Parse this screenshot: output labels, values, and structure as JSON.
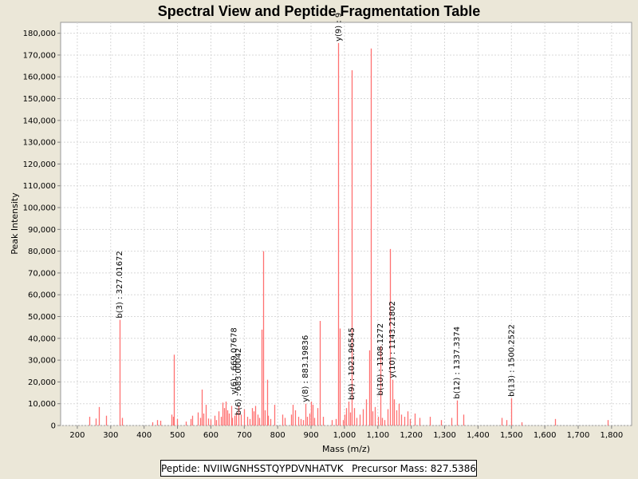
{
  "chart_data": {
    "type": "bar",
    "title": "Spectral View and Peptide Fragmentation Table",
    "xlabel": "Mass (m/z)",
    "ylabel": "Peak Intensity",
    "xlim": [
      150,
      1860
    ],
    "ylim": [
      0,
      185000
    ],
    "grid": true,
    "bar_color": "#ff7070",
    "x_ticks": [
      200,
      300,
      400,
      500,
      600,
      700,
      800,
      900,
      1000,
      1100,
      1200,
      1300,
      1400,
      1500,
      1600,
      1700,
      1800
    ],
    "x_tick_labels": [
      "200",
      "300",
      "400",
      "500",
      "600",
      "700",
      "800",
      "900",
      "1,000",
      "1,100",
      "1,200",
      "1,300",
      "1,400",
      "1,500",
      "1,600",
      "1,700",
      "1,800"
    ],
    "y_ticks": [
      0,
      10000,
      20000,
      30000,
      40000,
      50000,
      60000,
      70000,
      80000,
      90000,
      100000,
      110000,
      120000,
      130000,
      140000,
      150000,
      160000,
      170000,
      180000
    ],
    "y_tick_labels": [
      "0",
      "10,000",
      "20,000",
      "30,000",
      "40,000",
      "50,000",
      "60,000",
      "70,000",
      "80,000",
      "90,000",
      "100,000",
      "110,000",
      "120,000",
      "130,000",
      "140,000",
      "150,000",
      "160,000",
      "170,000",
      "180,000"
    ],
    "peaks": [
      [
        236,
        4000
      ],
      [
        255,
        3200
      ],
      [
        265,
        8500
      ],
      [
        285,
        4500
      ],
      [
        327,
        48500
      ],
      [
        333,
        3500
      ],
      [
        425,
        1500
      ],
      [
        440,
        2500
      ],
      [
        448,
        2200
      ],
      [
        483,
        5000
      ],
      [
        487,
        4000
      ],
      [
        490,
        32500
      ],
      [
        498,
        3000
      ],
      [
        525,
        1800
      ],
      [
        540,
        3000
      ],
      [
        545,
        4500
      ],
      [
        560,
        6000
      ],
      [
        568,
        3500
      ],
      [
        572,
        16500
      ],
      [
        578,
        5500
      ],
      [
        585,
        9500
      ],
      [
        592,
        3200
      ],
      [
        598,
        2800
      ],
      [
        610,
        4500
      ],
      [
        615,
        2500
      ],
      [
        622,
        6500
      ],
      [
        630,
        4000
      ],
      [
        636,
        10500
      ],
      [
        640,
        8000
      ],
      [
        645,
        11000
      ],
      [
        650,
        7000
      ],
      [
        655,
        5500
      ],
      [
        660,
        9000
      ],
      [
        664,
        3500
      ],
      [
        670,
        4500
      ],
      [
        675,
        6000
      ],
      [
        683,
        9000
      ],
      [
        690,
        5000
      ],
      [
        700,
        7500
      ],
      [
        710,
        4000
      ],
      [
        715,
        3000
      ],
      [
        722,
        8000
      ],
      [
        728,
        6500
      ],
      [
        732,
        9000
      ],
      [
        740,
        5000
      ],
      [
        745,
        3500
      ],
      [
        752,
        44000
      ],
      [
        757,
        80000
      ],
      [
        762,
        7000
      ],
      [
        768,
        21000
      ],
      [
        772,
        4500
      ],
      [
        778,
        3000
      ],
      [
        790,
        9500
      ],
      [
        815,
        5000
      ],
      [
        820,
        3500
      ],
      [
        840,
        5000
      ],
      [
        845,
        9500
      ],
      [
        852,
        7000
      ],
      [
        862,
        4000
      ],
      [
        870,
        3000
      ],
      [
        875,
        2500
      ],
      [
        883,
        10000
      ],
      [
        888,
        4000
      ],
      [
        895,
        5500
      ],
      [
        900,
        11000
      ],
      [
        905,
        9500
      ],
      [
        910,
        3500
      ],
      [
        918,
        8000
      ],
      [
        925,
        48000
      ],
      [
        935,
        4000
      ],
      [
        962,
        2500
      ],
      [
        975,
        3000
      ],
      [
        982,
        175500
      ],
      [
        985,
        44500
      ],
      [
        995,
        2500
      ],
      [
        1000,
        5000
      ],
      [
        1005,
        8000
      ],
      [
        1012,
        11000
      ],
      [
        1018,
        6000
      ],
      [
        1022,
        163000
      ],
      [
        1030,
        8000
      ],
      [
        1035,
        3500
      ],
      [
        1045,
        5000
      ],
      [
        1055,
        7500
      ],
      [
        1065,
        12000
      ],
      [
        1075,
        34500
      ],
      [
        1080,
        173000
      ],
      [
        1085,
        6500
      ],
      [
        1092,
        8500
      ],
      [
        1100,
        4000
      ],
      [
        1108,
        36500
      ],
      [
        1113,
        3500
      ],
      [
        1120,
        2500
      ],
      [
        1128,
        7500
      ],
      [
        1137,
        81000
      ],
      [
        1143,
        21000
      ],
      [
        1148,
        12000
      ],
      [
        1155,
        7000
      ],
      [
        1162,
        10000
      ],
      [
        1170,
        5000
      ],
      [
        1180,
        4000
      ],
      [
        1188,
        6500
      ],
      [
        1195,
        3000
      ],
      [
        1210,
        5500
      ],
      [
        1225,
        3500
      ],
      [
        1255,
        4000
      ],
      [
        1290,
        2500
      ],
      [
        1320,
        3500
      ],
      [
        1337,
        11500
      ],
      [
        1355,
        5000
      ],
      [
        1470,
        3500
      ],
      [
        1485,
        2500
      ],
      [
        1500,
        12500
      ],
      [
        1530,
        1500
      ],
      [
        1630,
        3000
      ],
      [
        1788,
        2500
      ]
    ],
    "annotations": [
      {
        "x": 327,
        "y": 48500,
        "label": "b(3) : 327.01672"
      },
      {
        "x": 669,
        "y": 13500,
        "label": "y(6) : 669.07678"
      },
      {
        "x": 683,
        "y": 4000,
        "label": "b(6) : 683.00042"
      },
      {
        "x": 883,
        "y": 10000,
        "label": "y(8) : 883.19836"
      },
      {
        "x": 982,
        "y": 175500,
        "label": "y(9) : 9"
      },
      {
        "x": 1022,
        "y": 11000,
        "label": "b(9) : 1021.96545"
      },
      {
        "x": 1108,
        "y": 13000,
        "label": "b(10) : 1108.1272"
      },
      {
        "x": 1143,
        "y": 21000,
        "label": "y(10) : 1143.21802"
      },
      {
        "x": 1337,
        "y": 11500,
        "label": "b(12) : 1337.3374"
      },
      {
        "x": 1500,
        "y": 12500,
        "label": "b(13) : 1500.2522"
      }
    ]
  },
  "info_box": {
    "peptide_label": "Peptide: NVIIWGNHSSTQYPDVNHATVK",
    "precursor_label": "Precursor Mass: 827.5386"
  }
}
